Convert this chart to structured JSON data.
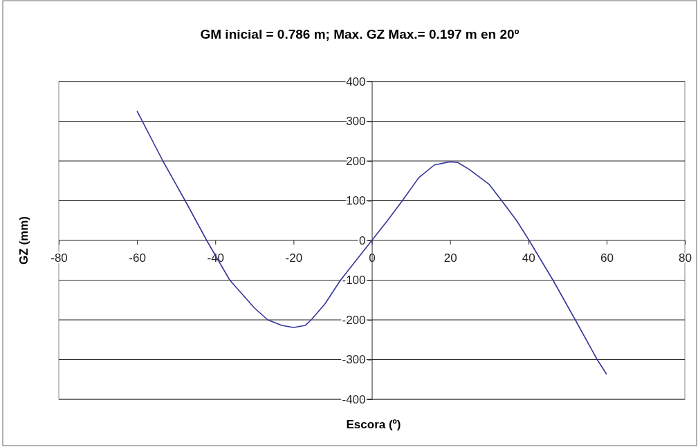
{
  "chart_data": {
    "type": "line",
    "title": "GM inicial = 0.786 m; Max. GZ Max.= 0.197 m en 20º",
    "xlabel": "Escora (º)",
    "ylabel": "GZ (mm)",
    "xlim": [
      -80,
      80
    ],
    "xticks": [
      -80,
      -60,
      -40,
      -20,
      0,
      20,
      40,
      60,
      80
    ],
    "ylim": [
      -400,
      400
    ],
    "yticks": [
      -400,
      -300,
      -200,
      -100,
      0,
      100,
      200,
      300,
      400
    ],
    "grid": "y",
    "marker": "none",
    "line_style": "solid",
    "series": [
      {
        "color": "#333399",
        "x": [
          -60,
          -53.4,
          -47.7,
          -42.2,
          -36.3,
          -30,
          -26.6,
          -23,
          -20,
          -17,
          -15.5,
          -12,
          -8,
          -4,
          0,
          4,
          7.8,
          12,
          16,
          20,
          22,
          25,
          30,
          33.2,
          37,
          40.2,
          46.3,
          52,
          57.6,
          60
        ],
        "values": [
          326,
          200,
          100,
          0,
          -100,
          -170,
          -200,
          -214,
          -219,
          -214,
          -200,
          -160,
          -100,
          -50,
          0,
          50,
          100,
          158,
          190,
          198,
          196,
          178,
          141,
          100,
          50,
          0,
          -100,
          -200,
          -300,
          -337
        ]
      }
    ]
  }
}
